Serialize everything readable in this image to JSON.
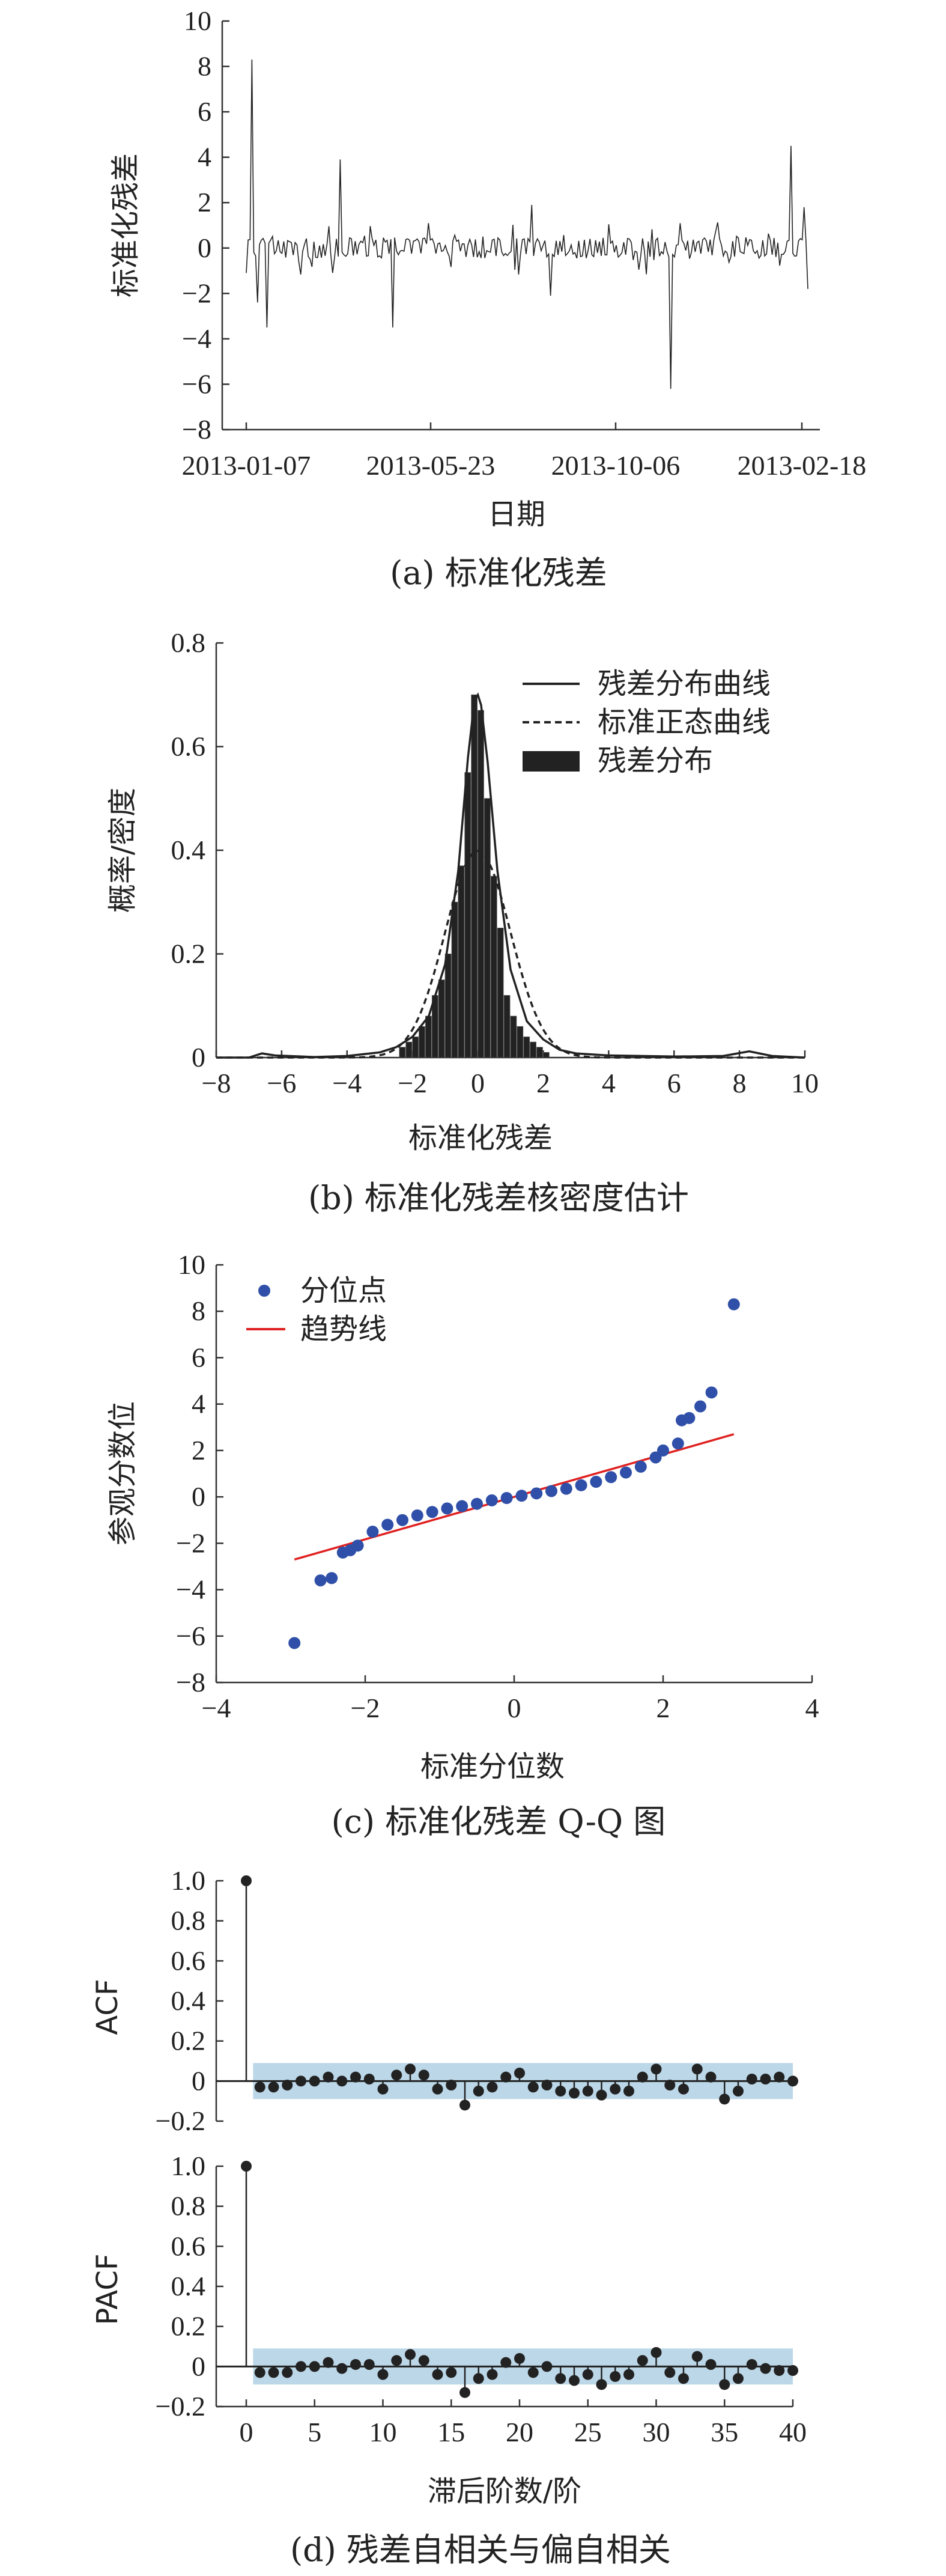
{
  "captions": {
    "a": "(a) 标准化残差",
    "b": "(b) 标准化残差核密度估计",
    "c": "(c) 标准化残差 Q-Q 图",
    "d": "(d) 残差自相关与偏自相关"
  },
  "chart_data": [
    {
      "id": "a",
      "type": "line",
      "xlabel": "日期",
      "ylabel": "标准化残差",
      "ylim": [
        -8,
        10
      ],
      "yticks": [
        "10",
        "8",
        "6",
        "4",
        "2",
        "0",
        "−2",
        "−4",
        "−6",
        "−8"
      ],
      "xtick_labels": [
        "2013-01-07",
        "2013-05-23",
        "2013-10-06",
        "2013-02-18"
      ],
      "n_points": 300,
      "notable_points": [
        {
          "index": 3,
          "value": 8.3
        },
        {
          "index": 6,
          "value": -2.4
        },
        {
          "index": 11,
          "value": -3.5
        },
        {
          "index": 50,
          "value": 3.9
        },
        {
          "index": 78,
          "value": -3.5
        },
        {
          "index": 152,
          "value": 1.9
        },
        {
          "index": 162,
          "value": -2.1
        },
        {
          "index": 226,
          "value": -6.2
        },
        {
          "index": 290,
          "value": 4.5
        },
        {
          "index": 297,
          "value": 1.8
        },
        {
          "index": 299,
          "value": -1.8
        }
      ]
    },
    {
      "id": "b",
      "type": "bar",
      "xlabel": "标准化残差",
      "ylabel": "概率/密度",
      "xlim": [
        -8,
        10
      ],
      "ylim": [
        0,
        0.8
      ],
      "xticks": [
        "−8",
        "−6",
        "−4",
        "−2",
        "0",
        "2",
        "4",
        "6",
        "8",
        "10"
      ],
      "yticks": [
        "0.8",
        "0.6",
        "0.4",
        "0.2",
        "0"
      ],
      "legend": [
        "残差分布曲线",
        "标准正态曲线",
        "残差分布"
      ],
      "histogram": {
        "bin_edges": [
          -2.4,
          -2.2,
          -2.0,
          -1.8,
          -1.6,
          -1.4,
          -1.2,
          -1.0,
          -0.8,
          -0.6,
          -0.4,
          -0.2,
          0.0,
          0.2,
          0.4,
          0.6,
          0.8,
          1.0,
          1.2,
          1.4,
          1.6,
          1.8,
          2.0,
          2.2
        ],
        "heights": [
          0.02,
          0.03,
          0.04,
          0.06,
          0.08,
          0.12,
          0.15,
          0.2,
          0.3,
          0.37,
          0.55,
          0.7,
          0.67,
          0.5,
          0.35,
          0.25,
          0.12,
          0.08,
          0.06,
          0.04,
          0.03,
          0.02,
          0.01
        ]
      },
      "kde_curve": {
        "x": [
          -8,
          -7,
          -6.6,
          -6.2,
          -5,
          -4,
          -3,
          -2.5,
          -2,
          -1.5,
          -1,
          -0.6,
          -0.3,
          -0.1,
          0,
          0.1,
          0.3,
          0.6,
          1,
          1.5,
          2,
          2.5,
          3,
          4,
          6,
          7.5,
          8.3,
          9,
          10
        ],
        "y": [
          0,
          0,
          0.008,
          0.004,
          0.001,
          0.003,
          0.01,
          0.02,
          0.04,
          0.08,
          0.18,
          0.36,
          0.58,
          0.69,
          0.7,
          0.68,
          0.57,
          0.36,
          0.17,
          0.07,
          0.035,
          0.015,
          0.008,
          0.004,
          0.002,
          0.003,
          0.012,
          0.003,
          0
        ]
      },
      "normal_curve": {
        "mean": 0,
        "sd": 1
      }
    },
    {
      "id": "c",
      "type": "scatter",
      "xlabel": "标准分位数",
      "ylabel": "参观分数位",
      "xlim": [
        -4,
        4
      ],
      "ylim": [
        -8,
        10
      ],
      "xticks": [
        "−4",
        "−2",
        "0",
        "2",
        "4"
      ],
      "yticks": [
        "10",
        "8",
        "6",
        "4",
        "2",
        "0",
        "−2",
        "−4",
        "−6",
        "−8"
      ],
      "legend": [
        "分位点",
        "趋势线"
      ],
      "series": [
        {
          "name": "分位点",
          "points": [
            [
              -2.95,
              -6.3
            ],
            [
              -2.6,
              -3.6
            ],
            [
              -2.45,
              -3.5
            ],
            [
              -2.3,
              -2.4
            ],
            [
              -2.2,
              -2.3
            ],
            [
              -2.1,
              -2.1
            ],
            [
              -1.9,
              -1.5
            ],
            [
              -1.7,
              -1.2
            ],
            [
              -1.5,
              -1.0
            ],
            [
              -1.3,
              -0.8
            ],
            [
              -1.1,
              -0.65
            ],
            [
              -0.9,
              -0.5
            ],
            [
              -0.7,
              -0.4
            ],
            [
              -0.5,
              -0.3
            ],
            [
              -0.3,
              -0.15
            ],
            [
              -0.1,
              -0.05
            ],
            [
              0.1,
              0.05
            ],
            [
              0.3,
              0.15
            ],
            [
              0.5,
              0.25
            ],
            [
              0.7,
              0.35
            ],
            [
              0.9,
              0.5
            ],
            [
              1.1,
              0.65
            ],
            [
              1.3,
              0.85
            ],
            [
              1.5,
              1.05
            ],
            [
              1.7,
              1.3
            ],
            [
              1.9,
              1.7
            ],
            [
              2.0,
              2.0
            ],
            [
              2.2,
              2.3
            ],
            [
              2.25,
              3.3
            ],
            [
              2.35,
              3.4
            ],
            [
              2.5,
              3.9
            ],
            [
              2.65,
              4.5
            ],
            [
              2.95,
              8.3
            ]
          ]
        },
        {
          "name": "趋势线",
          "points": [
            [
              -2.95,
              -2.7
            ],
            [
              2.95,
              2.7
            ]
          ]
        }
      ],
      "colors": {
        "points": "#2f4fa8",
        "trend": "#e02020"
      }
    },
    {
      "id": "d1",
      "type": "bar",
      "ylabel": "ACF",
      "xlim": [
        0,
        40
      ],
      "ylim": [
        -0.2,
        1.0
      ],
      "yticks": [
        "1.0",
        "0.8",
        "0.6",
        "0.4",
        "0.2",
        "0",
        "−0.2"
      ],
      "lags": [
        0,
        1,
        2,
        3,
        4,
        5,
        6,
        7,
        8,
        9,
        10,
        11,
        12,
        13,
        14,
        15,
        16,
        17,
        18,
        19,
        20,
        21,
        22,
        23,
        24,
        25,
        26,
        27,
        28,
        29,
        30,
        31,
        32,
        33,
        34,
        35,
        36,
        37,
        38,
        39,
        40
      ],
      "values": [
        1.0,
        -0.03,
        -0.03,
        -0.02,
        0.0,
        0.0,
        0.02,
        0.0,
        0.02,
        0.01,
        -0.04,
        0.03,
        0.06,
        0.03,
        -0.04,
        -0.02,
        -0.12,
        -0.05,
        -0.03,
        0.02,
        0.04,
        -0.03,
        -0.02,
        -0.05,
        -0.06,
        -0.05,
        -0.07,
        -0.04,
        -0.05,
        0.02,
        0.06,
        -0.02,
        -0.04,
        0.06,
        0.02,
        -0.09,
        -0.05,
        0.01,
        0.01,
        0.02,
        0.0
      ],
      "confidence_band": 0.09,
      "band_color": "#bcd7e8"
    },
    {
      "id": "d2",
      "type": "bar",
      "xlabel": "滞后阶数/阶",
      "ylabel": "PACF",
      "xlim": [
        0,
        40
      ],
      "ylim": [
        -0.2,
        1.0
      ],
      "xticks": [
        "0",
        "5",
        "10",
        "15",
        "20",
        "25",
        "30",
        "35",
        "40"
      ],
      "yticks": [
        "1.0",
        "0.8",
        "0.6",
        "0.4",
        "0.2",
        "0",
        "−0.2"
      ],
      "lags": [
        0,
        1,
        2,
        3,
        4,
        5,
        6,
        7,
        8,
        9,
        10,
        11,
        12,
        13,
        14,
        15,
        16,
        17,
        18,
        19,
        20,
        21,
        22,
        23,
        24,
        25,
        26,
        27,
        28,
        29,
        30,
        31,
        32,
        33,
        34,
        35,
        36,
        37,
        38,
        39,
        40
      ],
      "values": [
        1.0,
        -0.03,
        -0.03,
        -0.03,
        0.0,
        0.0,
        0.02,
        -0.01,
        0.01,
        0.01,
        -0.04,
        0.03,
        0.06,
        0.03,
        -0.04,
        -0.03,
        -0.13,
        -0.06,
        -0.04,
        0.02,
        0.04,
        -0.03,
        0.0,
        -0.06,
        -0.07,
        -0.04,
        -0.09,
        -0.05,
        -0.04,
        0.03,
        0.07,
        -0.03,
        -0.06,
        0.05,
        0.01,
        -0.09,
        -0.06,
        0.01,
        -0.01,
        -0.02,
        -0.02
      ],
      "confidence_band": 0.09,
      "band_color": "#bcd7e8"
    }
  ]
}
